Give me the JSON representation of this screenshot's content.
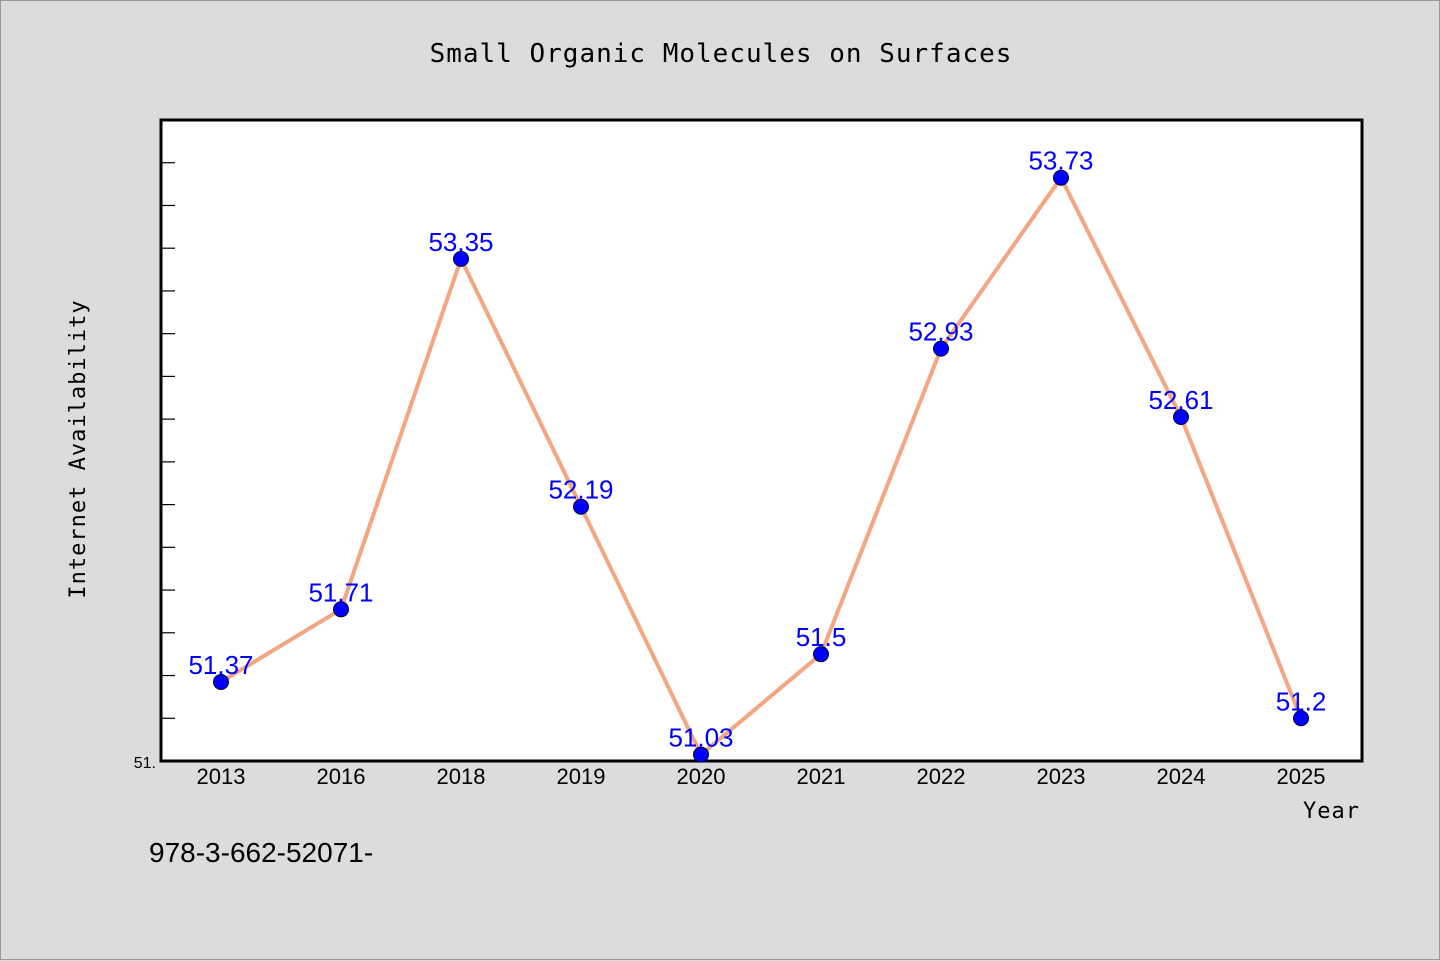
{
  "chart_data": {
    "type": "line",
    "title": "Small Organic Molecules on Surfaces",
    "xlabel": "Year",
    "ylabel": "Internet Availability",
    "categories": [
      "2013",
      "2016",
      "2018",
      "2019",
      "2020",
      "2021",
      "2022",
      "2023",
      "2024",
      "2025"
    ],
    "series": [
      {
        "values": [
          51.37,
          51.71,
          53.35,
          52.19,
          51.03,
          51.5,
          52.93,
          53.73,
          52.61,
          51.2
        ],
        "data_labels": [
          "51.37",
          "51.71",
          "53.35",
          "52.19",
          "51.03",
          "51.5",
          "52.93",
          "53.73",
          "52.61",
          "51.2"
        ]
      }
    ],
    "ylim": [
      51.0,
      54.0
    ],
    "y_tick_label": "51.",
    "grid": false,
    "line_color": "#f4a582",
    "marker_color": "#0000ff",
    "label_color": "#0000ff"
  },
  "footer_text": "978-3-662-52071-"
}
